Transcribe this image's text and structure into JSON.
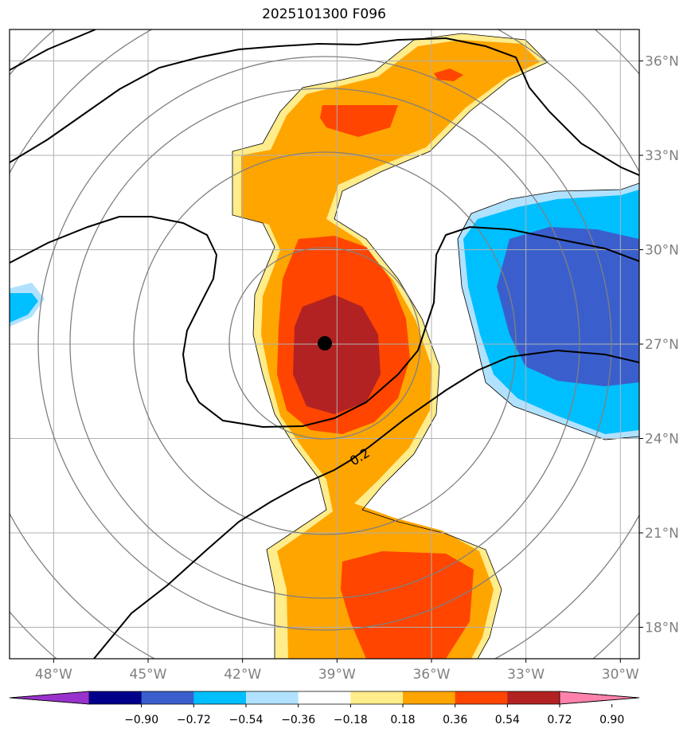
{
  "title": "2025101300 F096",
  "map": {
    "lon_ticks": [
      {
        "value": -48,
        "label": "48°W"
      },
      {
        "value": -45,
        "label": "45°W"
      },
      {
        "value": -42,
        "label": "42°W"
      },
      {
        "value": -39,
        "label": "39°W"
      },
      {
        "value": -36,
        "label": "36°W"
      },
      {
        "value": -33,
        "label": "33°W"
      },
      {
        "value": -30,
        "label": "30°W"
      }
    ],
    "lat_ticks": [
      {
        "value": 36,
        "label": "36°N"
      },
      {
        "value": 33,
        "label": "33°N"
      },
      {
        "value": 30,
        "label": "30°N"
      },
      {
        "value": 27,
        "label": "27°N"
      },
      {
        "value": 24,
        "label": "24°N"
      },
      {
        "value": 21,
        "label": "21°N"
      },
      {
        "value": 18,
        "label": "18°N"
      }
    ],
    "extent": {
      "lon_min": -49.4,
      "lon_max": -29.4,
      "lat_min": 17.0,
      "lat_max": 37.0
    },
    "center": {
      "lon": -39.35,
      "lat": 27.0
    },
    "contour_label": "0.2"
  },
  "colorbar": {
    "labels": [
      "−0.90",
      "−0.72",
      "−0.54",
      "−0.36",
      "−0.18",
      "0.18",
      "0.36",
      "0.54",
      "0.72",
      "0.90"
    ],
    "colors": [
      "#9932cc",
      "#00008b",
      "#3a5fcd",
      "#00bfff",
      "#b0e2ff",
      "#ffffff",
      "#ffec8b",
      "#ffa500",
      "#ff4500",
      "#b22222",
      "#ff82ab"
    ]
  }
}
